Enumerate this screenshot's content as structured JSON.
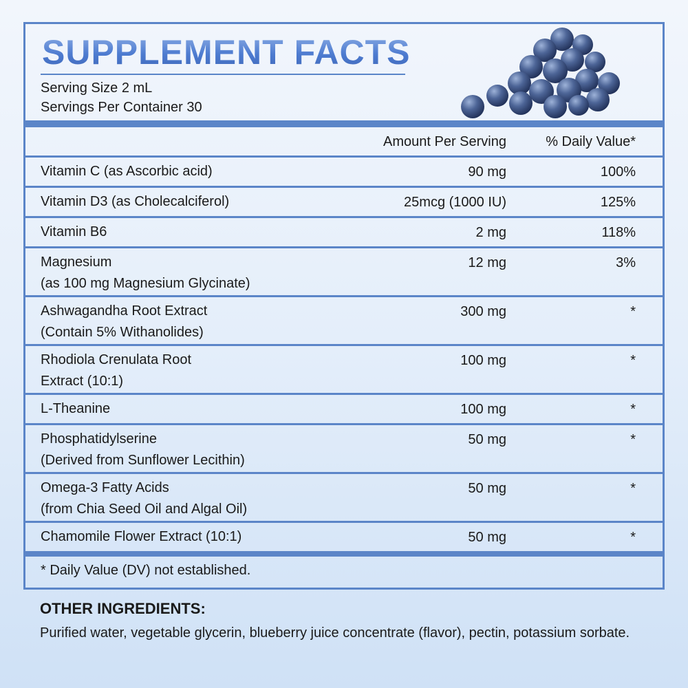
{
  "header": {
    "title": "SUPPLEMENT FACTS",
    "serving_size": "Serving Size 2 mL",
    "servings_per_container": "Servings Per Container 30"
  },
  "table": {
    "columns": [
      "Amount Per Serving",
      "% Daily Value*"
    ],
    "rows": [
      {
        "name": [
          "Vitamin C (as Ascorbic acid)"
        ],
        "amount": "90 mg",
        "dv": "100%"
      },
      {
        "name": [
          "Vitamin D3 (as Cholecalciferol)"
        ],
        "amount": "25mcg (1000 IU)",
        "dv": "125%"
      },
      {
        "name": [
          "Vitamin B6"
        ],
        "amount": "2 mg",
        "dv": "118%"
      },
      {
        "name": [
          "Magnesium",
          "(as 100 mg Magnesium Glycinate)"
        ],
        "amount": "12 mg",
        "dv": "3%"
      },
      {
        "name": [
          "Ashwagandha Root Extract",
          "(Contain 5% Withanolides)"
        ],
        "amount": "300 mg",
        "dv": "*"
      },
      {
        "name": [
          "Rhodiola Crenulata Root",
          "Extract (10:1)"
        ],
        "amount": "100 mg",
        "dv": "*"
      },
      {
        "name": [
          "L-Theanine"
        ],
        "amount": "100 mg",
        "dv": "*"
      },
      {
        "name": [
          "Phosphatidylserine",
          "(Derived from Sunflower Lecithin)"
        ],
        "amount": "50 mg",
        "dv": "*"
      },
      {
        "name": [
          "Omega-3 Fatty Acids",
          "(from Chia Seed Oil and Algal Oil)"
        ],
        "amount": "50 mg",
        "dv": "*"
      },
      {
        "name": [
          "Chamomile Flower Extract (10:1)"
        ],
        "amount": "50 mg",
        "dv": "*"
      }
    ],
    "footnote": "* Daily Value (DV) not established."
  },
  "other_ingredients": {
    "heading": "OTHER INGREDIENTS:",
    "text": "Purified water, vegetable glycerin, blueberry juice concentrate (flavor), pectin, potassium sorbate."
  }
}
